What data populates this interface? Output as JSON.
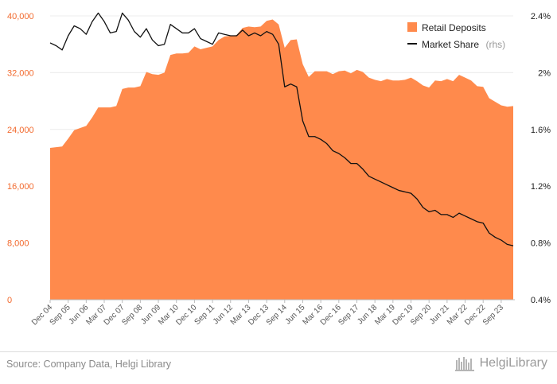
{
  "chart_data": {
    "type": "area",
    "title": "",
    "xlabel": "",
    "ylabel": "",
    "legend_position": "top-right",
    "x_tick_labels": [
      "Dec 04",
      "Sep 05",
      "Jun 06",
      "Mar 07",
      "Dec 07",
      "Sep 08",
      "Jun 09",
      "Mar 10",
      "Dec 10",
      "Sep 11",
      "Jun 12",
      "Mar 13",
      "Dec 13",
      "Sep 14",
      "Jun 15",
      "Mar 16",
      "Dec 16",
      "Sep 17",
      "Jun 18",
      "Mar 19",
      "Dec 19",
      "Sep 20",
      "Jun 21",
      "Mar 22",
      "Dec 22",
      "Sep 23"
    ],
    "y_left": {
      "min": 0,
      "max": 40000,
      "ticks": [
        0,
        8000,
        16000,
        24000,
        32000,
        40000
      ],
      "tick_labels": [
        "0",
        "8,000",
        "16,000",
        "24,000",
        "32,000",
        "40,000"
      ]
    },
    "y_right": {
      "min": 0.4,
      "max": 2.4,
      "ticks": [
        0.4,
        0.8,
        1.2,
        1.6,
        2.0,
        2.4
      ],
      "tick_labels": [
        "0.4%",
        "0.8%",
        "1.2%",
        "1.6%",
        "2%",
        "2.4%"
      ]
    },
    "series": [
      {
        "name": "Retail Deposits",
        "axis": "left",
        "kind": "area",
        "color": "#ff8a4c",
        "values": [
          21400,
          21500,
          21600,
          22700,
          23900,
          24200,
          24500,
          25700,
          27100,
          27100,
          27100,
          27300,
          29700,
          29900,
          29900,
          30100,
          32100,
          31800,
          31700,
          32000,
          34500,
          34700,
          34700,
          34800,
          35700,
          35300,
          35500,
          35700,
          36600,
          37100,
          37200,
          37300,
          38300,
          38500,
          38400,
          38500,
          39300,
          39500,
          38800,
          35500,
          36600,
          36700,
          33200,
          31400,
          32200,
          32200,
          32200,
          31800,
          32200,
          32300,
          31900,
          32400,
          32100,
          31300,
          31000,
          30800,
          31100,
          30900,
          30900,
          31000,
          31300,
          30800,
          30200,
          29900,
          30900,
          30800,
          31100,
          30800,
          31700,
          31300,
          30900,
          30100,
          30000,
          28400,
          27900,
          27400,
          27200,
          27300
        ]
      },
      {
        "name": "Market Share",
        "suffix": "(rhs)",
        "axis": "right",
        "kind": "line",
        "color": "#111111",
        "values": [
          2.21,
          2.19,
          2.16,
          2.26,
          2.33,
          2.31,
          2.27,
          2.36,
          2.42,
          2.36,
          2.28,
          2.29,
          2.42,
          2.37,
          2.29,
          2.25,
          2.31,
          2.23,
          2.19,
          2.2,
          2.34,
          2.31,
          2.28,
          2.28,
          2.31,
          2.24,
          2.22,
          2.2,
          2.28,
          2.27,
          2.26,
          2.26,
          2.3,
          2.26,
          2.28,
          2.26,
          2.29,
          2.27,
          2.2,
          1.9,
          1.92,
          1.9,
          1.66,
          1.55,
          1.55,
          1.53,
          1.5,
          1.45,
          1.43,
          1.4,
          1.36,
          1.36,
          1.32,
          1.27,
          1.25,
          1.23,
          1.21,
          1.19,
          1.17,
          1.16,
          1.15,
          1.11,
          1.05,
          1.02,
          1.03,
          1.0,
          1.0,
          0.98,
          1.01,
          0.99,
          0.97,
          0.95,
          0.94,
          0.87,
          0.84,
          0.82,
          0.79,
          0.78
        ]
      }
    ]
  },
  "footer": {
    "source": "Source: Company Data, Helgi Library",
    "brand": "HelgiLibrary"
  }
}
